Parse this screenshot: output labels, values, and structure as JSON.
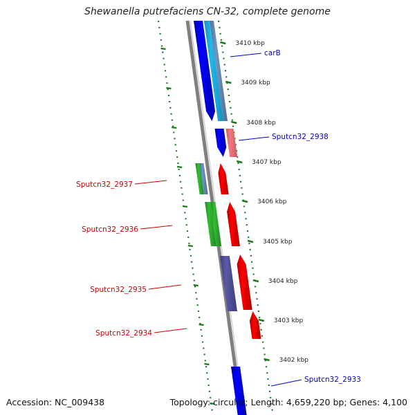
{
  "title": "Shewanella putrefaciens CN-32, complete genome",
  "footer": {
    "accession": "Accession: NC_009438",
    "summary": "Topology: circular; Length: 4,659,220 bp; Genes: 4,100"
  },
  "colors": {
    "backbone": "#808080",
    "tick_marks": "#1a7a1a",
    "forward_label": "#0000cc",
    "reverse_label": "#cc0000",
    "cds_forward": "#0000ff",
    "cds_reverse": "#ff0000",
    "cog_cyan": "#22b8e8",
    "cog_steel": "#6f95c0",
    "cog_pink": "#f07a80",
    "cog_green": "#33bb33",
    "cog_purple": "#5a5aa6"
  },
  "scale_ticks": [
    "3410 kbp",
    "3409 kbp",
    "3408 kbp",
    "3407 kbp",
    "3406 kbp",
    "3405 kbp",
    "3404 kbp",
    "3403 kbp",
    "3402 kbp"
  ],
  "genes": {
    "forward": [
      "carB",
      "Sputcn32_2938",
      "Sputcn32_2933"
    ],
    "reverse": [
      "Sputcn32_2937",
      "Sputcn32_2936",
      "Sputcn32_2935",
      "Sputcn32_2934"
    ]
  }
}
